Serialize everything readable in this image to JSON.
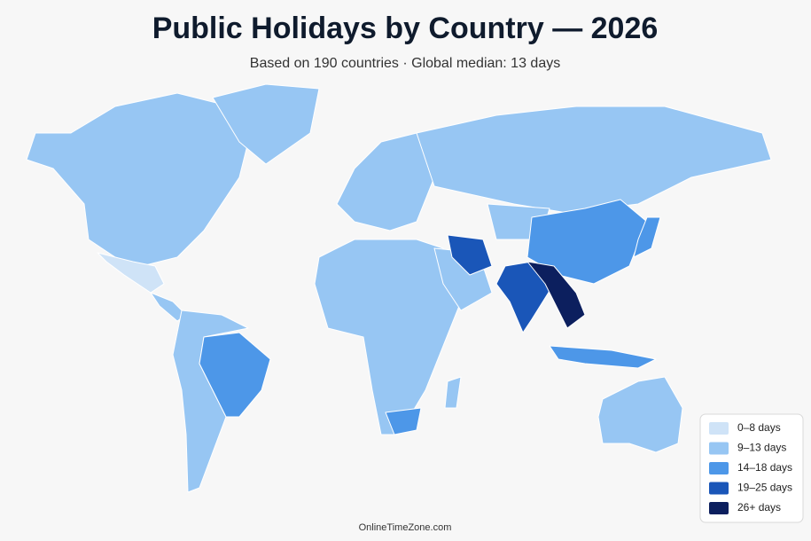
{
  "title": "Public Holidays by Country — 2026",
  "subtitle": "Based on 190 countries · Global median: 13 days",
  "legend": [
    {
      "label": "0–8 days",
      "color": "#cfe3f7"
    },
    {
      "label": "9–13 days",
      "color": "#97c6f3"
    },
    {
      "label": "14–18 days",
      "color": "#4d97e8"
    },
    {
      "label": "19–25 days",
      "color": "#1a56b8"
    },
    {
      "label": "26+ days",
      "color": "#0c1f5e"
    }
  ],
  "footer": "OnlineTimeZone.com"
}
